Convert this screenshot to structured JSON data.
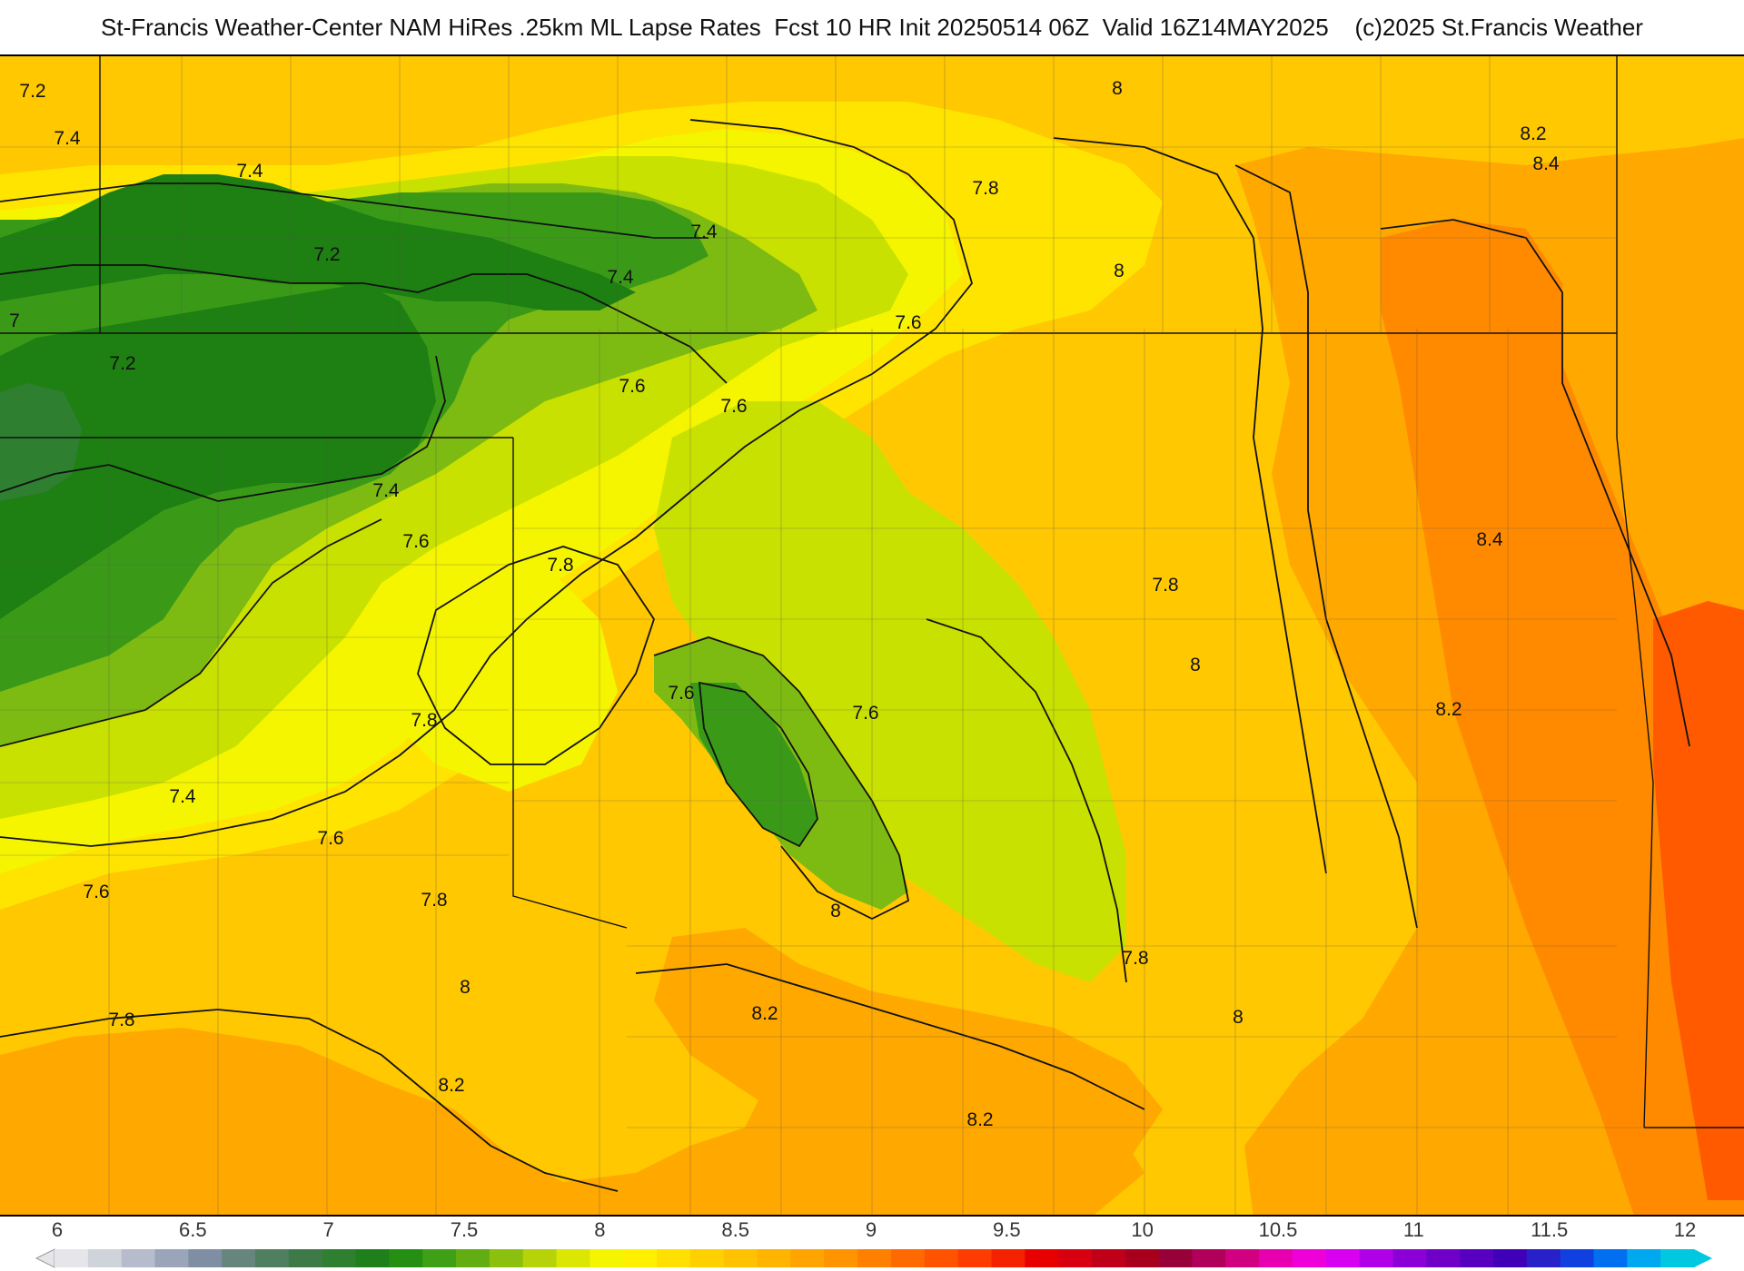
{
  "title": "St-Francis Weather-Center NAM HiRes .25km ML Lapse Rates  Fcst 10 HR Init 20250514 06Z  Valid 16Z14MAY2025    (c)2025 St.Francis Weather",
  "colorbar": {
    "ticks": [
      "6",
      "6.5",
      "7",
      "7.5",
      "8",
      "8.5",
      "9",
      "9.5",
      "10",
      "10.5",
      "11",
      "11.5",
      "12"
    ],
    "colors": [
      "#e6e6ea",
      "#cfd3da",
      "#b6bccb",
      "#9aa5b9",
      "#7f8ea3",
      "#66857d",
      "#4f7f5f",
      "#3e7a48",
      "#2f7f31",
      "#1f7f1a",
      "#248f12",
      "#3fa015",
      "#62ad12",
      "#8cc00f",
      "#b6d30a",
      "#dbe603",
      "#f5f500",
      "#fff000",
      "#ffe000",
      "#ffd000",
      "#ffc200",
      "#ffb400",
      "#ffa400",
      "#ff9300",
      "#ff8000",
      "#ff6a00",
      "#ff5300",
      "#ff3c00",
      "#f52200",
      "#e80000",
      "#d80010",
      "#c00018",
      "#a8001c",
      "#98003a",
      "#b0005a",
      "#d00080",
      "#e800b0",
      "#f000d8",
      "#d800f0",
      "#b000e8",
      "#8c00d8",
      "#7000c8",
      "#5800c0",
      "#4000b8",
      "#2820c8",
      "#1040e0",
      "#0070f0",
      "#00a8f0",
      "#00c8e0"
    ]
  },
  "contour_labels": [
    "7.2",
    "7.4",
    "7.4",
    "7.2",
    "7.4",
    "7.4",
    "7.8",
    "8",
    "8.2",
    "8.4",
    "7",
    "7.2",
    "7.6",
    "7.6",
    "7.6",
    "8",
    "7.4",
    "7.6",
    "7.8",
    "7.8",
    "8.4",
    "7.8",
    "7.6",
    "7.6",
    "8",
    "8.2",
    "7.4",
    "7.6",
    "7.6",
    "7.8",
    "8",
    "7.8",
    "7.8",
    "8",
    "8.2",
    "8",
    "8.2",
    "8.2"
  ],
  "colors": {
    "green_dark": "#1e7f12",
    "green": "#3a9a18",
    "green_light": "#7dbb12",
    "yellow_green": "#c9e100",
    "yellow": "#f5f500",
    "yellow_orange": "#ffe400",
    "orange_light": "#ffc800",
    "orange": "#ffa800",
    "orange_dark": "#ff8a00",
    "red_orange": "#ff5a00"
  }
}
